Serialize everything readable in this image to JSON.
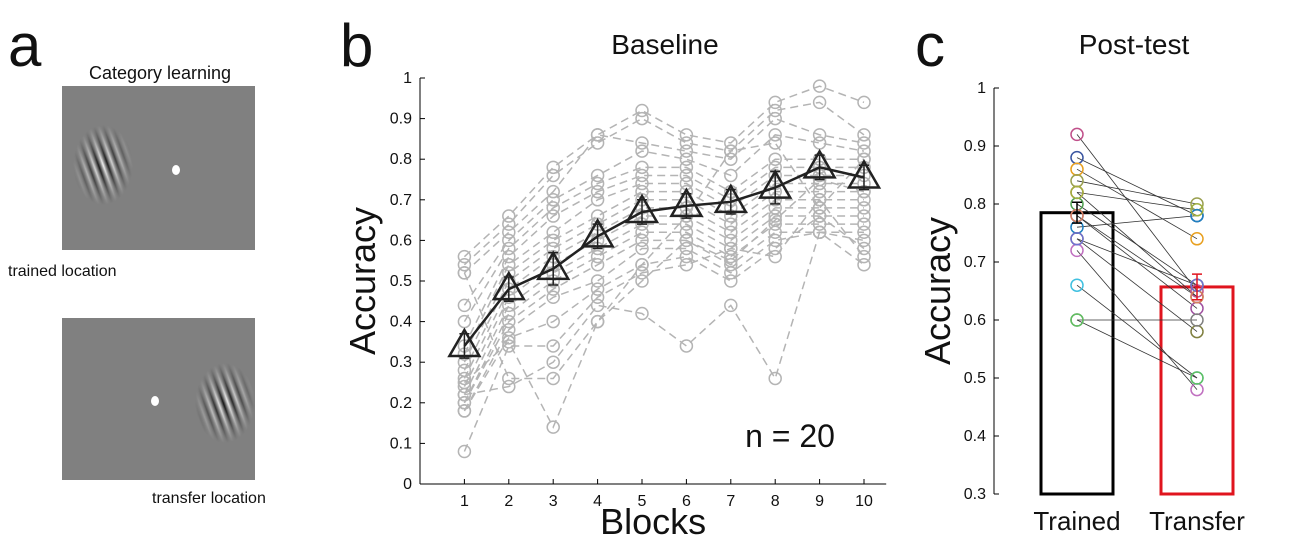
{
  "panel_a": {
    "panel_label": "a",
    "title": "Category learning",
    "captions": [
      "trained location",
      "transfer location"
    ]
  },
  "chart_data": [
    {
      "type": "line",
      "panel_label": "b",
      "title": "Baseline",
      "x_label": "Blocks",
      "y_label": "Accuracy",
      "annotation": "n = 20",
      "x": [
        1,
        2,
        3,
        4,
        5,
        6,
        7,
        8,
        9,
        10
      ],
      "xlim": [
        0,
        10.5
      ],
      "xticks": [
        1,
        2,
        3,
        4,
        5,
        6,
        7,
        8,
        9,
        10
      ],
      "ylim": [
        0,
        1
      ],
      "yticks": [
        0,
        0.1,
        0.2,
        0.3,
        0.4,
        0.5,
        0.6,
        0.7,
        0.8,
        0.9,
        1
      ],
      "subject_color": "#b4b4b4",
      "subjects": [
        [
          0.56,
          0.66,
          0.78,
          0.86,
          0.92,
          0.86,
          0.84,
          0.94,
          0.98,
          0.94
        ],
        [
          0.54,
          0.64,
          0.76,
          0.84,
          0.9,
          0.84,
          0.82,
          0.92,
          0.94,
          0.86
        ],
        [
          0.52,
          0.62,
          0.72,
          0.86,
          0.84,
          0.82,
          0.8,
          0.9,
          0.86,
          0.84
        ],
        [
          0.44,
          0.6,
          0.7,
          0.76,
          0.82,
          0.8,
          0.76,
          0.86,
          0.84,
          0.82
        ],
        [
          0.4,
          0.58,
          0.68,
          0.74,
          0.78,
          0.78,
          0.72,
          0.8,
          0.8,
          0.8
        ],
        [
          0.34,
          0.56,
          0.66,
          0.72,
          0.76,
          0.76,
          0.7,
          0.78,
          0.78,
          0.78
        ],
        [
          0.32,
          0.54,
          0.62,
          0.7,
          0.74,
          0.74,
          0.68,
          0.76,
          0.76,
          0.76
        ],
        [
          0.3,
          0.52,
          0.6,
          0.66,
          0.72,
          0.72,
          0.66,
          0.74,
          0.74,
          0.74
        ],
        [
          0.28,
          0.5,
          0.58,
          0.64,
          0.7,
          0.7,
          0.64,
          0.72,
          0.72,
          0.72
        ],
        [
          0.26,
          0.48,
          0.56,
          0.62,
          0.68,
          0.68,
          0.62,
          0.7,
          0.7,
          0.7
        ],
        [
          0.24,
          0.46,
          0.54,
          0.6,
          0.66,
          0.66,
          0.6,
          0.68,
          0.68,
          0.68
        ],
        [
          0.22,
          0.44,
          0.52,
          0.58,
          0.64,
          0.64,
          0.58,
          0.66,
          0.66,
          0.66
        ],
        [
          0.2,
          0.42,
          0.5,
          0.56,
          0.62,
          0.62,
          0.56,
          0.64,
          0.64,
          0.64
        ],
        [
          0.2,
          0.4,
          0.48,
          0.54,
          0.6,
          0.6,
          0.54,
          0.62,
          0.62,
          0.62
        ],
        [
          0.18,
          0.38,
          0.46,
          0.5,
          0.58,
          0.58,
          0.52,
          0.6,
          0.62,
          0.6
        ],
        [
          0.18,
          0.36,
          0.4,
          0.48,
          0.54,
          0.56,
          0.5,
          0.58,
          0.66,
          0.58
        ],
        [
          0.08,
          0.34,
          0.34,
          0.46,
          0.52,
          0.54,
          0.58,
          0.56,
          0.7,
          0.56
        ],
        [
          0.22,
          0.24,
          0.3,
          0.44,
          0.42,
          0.34,
          0.44,
          0.26,
          0.62,
          0.54
        ],
        [
          0.25,
          0.35,
          0.14,
          0.4,
          0.5,
          0.6,
          0.55,
          0.65,
          0.75,
          0.72
        ],
        [
          0.52,
          0.26,
          0.26,
          0.4,
          0.54,
          0.66,
          0.82,
          0.84,
          0.68,
          0.8
        ]
      ],
      "mean": {
        "color": "#222222",
        "values": [
          0.34,
          0.48,
          0.53,
          0.61,
          0.67,
          0.685,
          0.695,
          0.73,
          0.78,
          0.755
        ],
        "errors": [
          0.03,
          0.03,
          0.04,
          0.03,
          0.03,
          0.03,
          0.03,
          0.04,
          0.03,
          0.03
        ]
      }
    },
    {
      "type": "bar",
      "panel_label": "c",
      "title": "Post-test",
      "y_label": "Accuracy",
      "categories": [
        "Trained",
        "Transfer"
      ],
      "values": [
        0.785,
        0.657
      ],
      "errors": [
        0.018,
        0.022
      ],
      "colors": [
        "#000000",
        "#e0141e"
      ],
      "ylim": [
        0.3,
        1
      ],
      "yticks": [
        0.3,
        0.4,
        0.5,
        0.6,
        0.7,
        0.8,
        0.9,
        1
      ],
      "pairs": {
        "trained": [
          0.92,
          0.88,
          0.86,
          0.84,
          0.82,
          0.8,
          0.78,
          0.76,
          0.74,
          0.72,
          0.66,
          0.6,
          0.6,
          0.78,
          0.82,
          0.74
        ],
        "transfer": [
          0.65,
          0.78,
          0.74,
          0.8,
          0.64,
          0.66,
          0.62,
          0.78,
          0.58,
          0.48,
          0.5,
          0.6,
          0.5,
          0.64,
          0.79,
          0.66
        ],
        "colors": [
          "#c0508a",
          "#3a55a0",
          "#e8a020",
          "#9aa050",
          "#c85020",
          "#50a050",
          "#a050a0",
          "#2080c0",
          "#808040",
          "#c070c0",
          "#40c0e0",
          "#808080",
          "#60c060",
          "#d08060",
          "#a0b040",
          "#7070d0"
        ]
      }
    }
  ]
}
